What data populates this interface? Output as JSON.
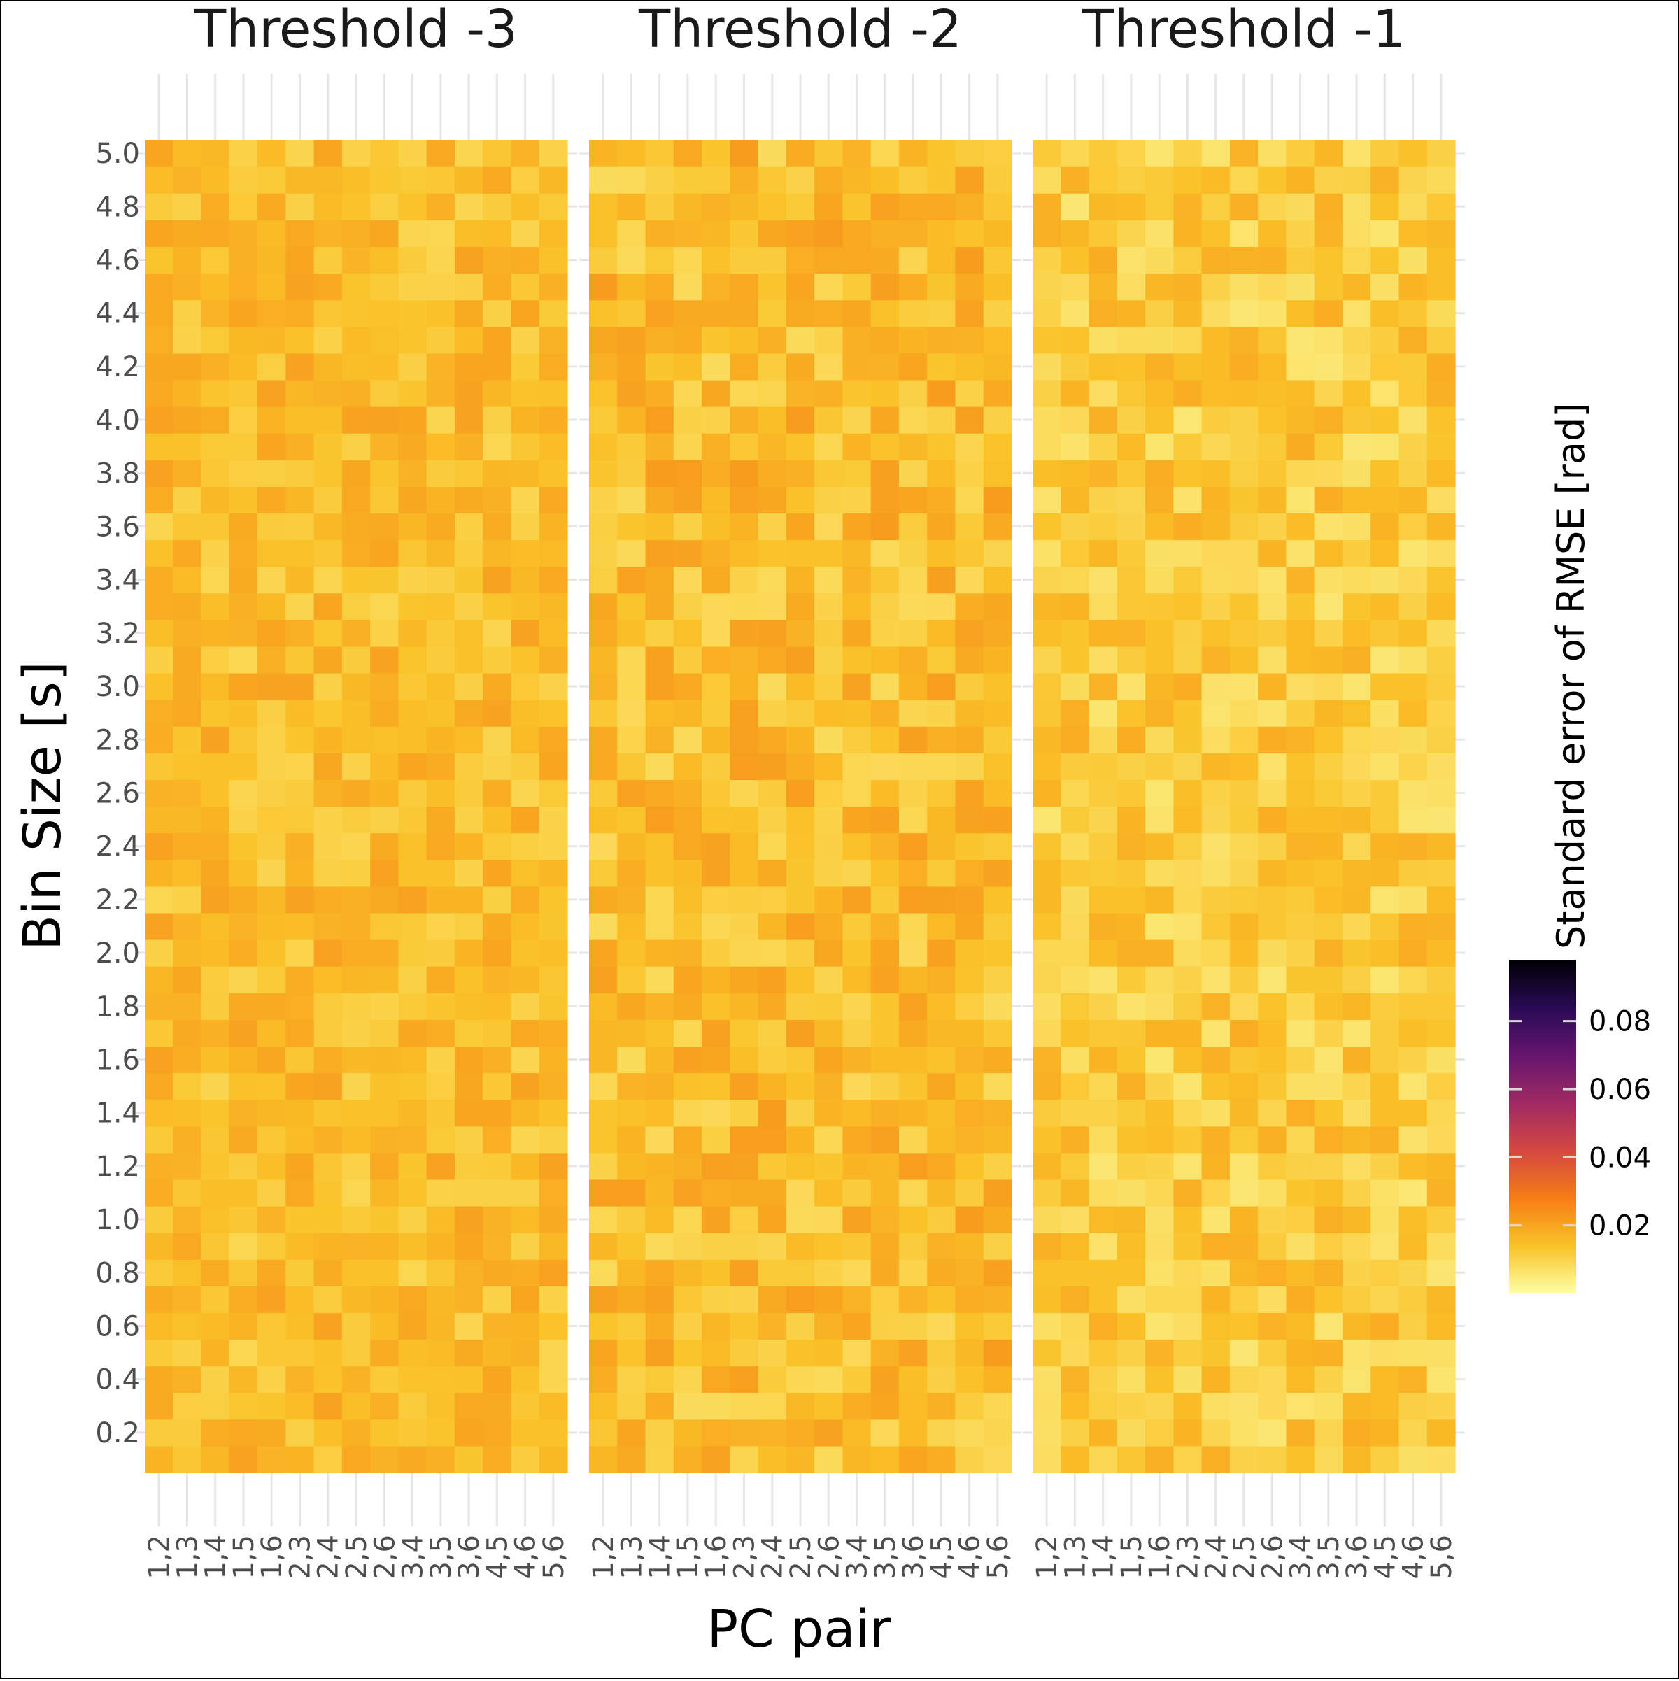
{
  "chart_data": {
    "type": "heatmap",
    "facet_labels": [
      "Threshold -3",
      "Threshold -2",
      "Threshold -1"
    ],
    "xlabel": "PC pair",
    "ylabel": "Bin Size [s]",
    "x_categories": [
      "1,2",
      "1,3",
      "1,4",
      "1,5",
      "1,6",
      "2,3",
      "2,4",
      "2,5",
      "2,6",
      "3,4",
      "3,5",
      "3,6",
      "4,5",
      "4,6",
      "5,6"
    ],
    "x_columns_per_panel": 15,
    "y_ticks": [
      "0.2",
      "0.4",
      "0.6",
      "0.8",
      "1.0",
      "1.2",
      "1.4",
      "1.6",
      "1.8",
      "2.0",
      "2.2",
      "2.4",
      "2.6",
      "2.8",
      "3.0",
      "3.2",
      "3.4",
      "3.6",
      "3.8",
      "4.0",
      "4.2",
      "4.4",
      "4.6",
      "4.8",
      "5.0"
    ],
    "y_range": [
      0.05,
      5.05
    ],
    "y_cell_step": 0.1,
    "legend": {
      "title": "Standard error of RMSE [rad]",
      "breaks": [
        "0.02",
        "0.04",
        "0.06",
        "0.08"
      ],
      "range": [
        0.0,
        0.098
      ],
      "colormap": "inferno (reversed)",
      "colors": [
        "#fcffa4",
        "#fac228",
        "#f57d15",
        "#d44842",
        "#9f2a63",
        "#65156e",
        "#280b53",
        "#000004"
      ]
    },
    "approx_values": {
      "Threshold -3": {
        "typical": 0.015,
        "range": [
          0.008,
          0.022
        ]
      },
      "Threshold -2": {
        "typical": 0.015,
        "range": [
          0.005,
          0.022
        ]
      },
      "Threshold -1": {
        "typical": 0.012,
        "range": [
          0.004,
          0.02
        ]
      }
    },
    "grid": true
  }
}
